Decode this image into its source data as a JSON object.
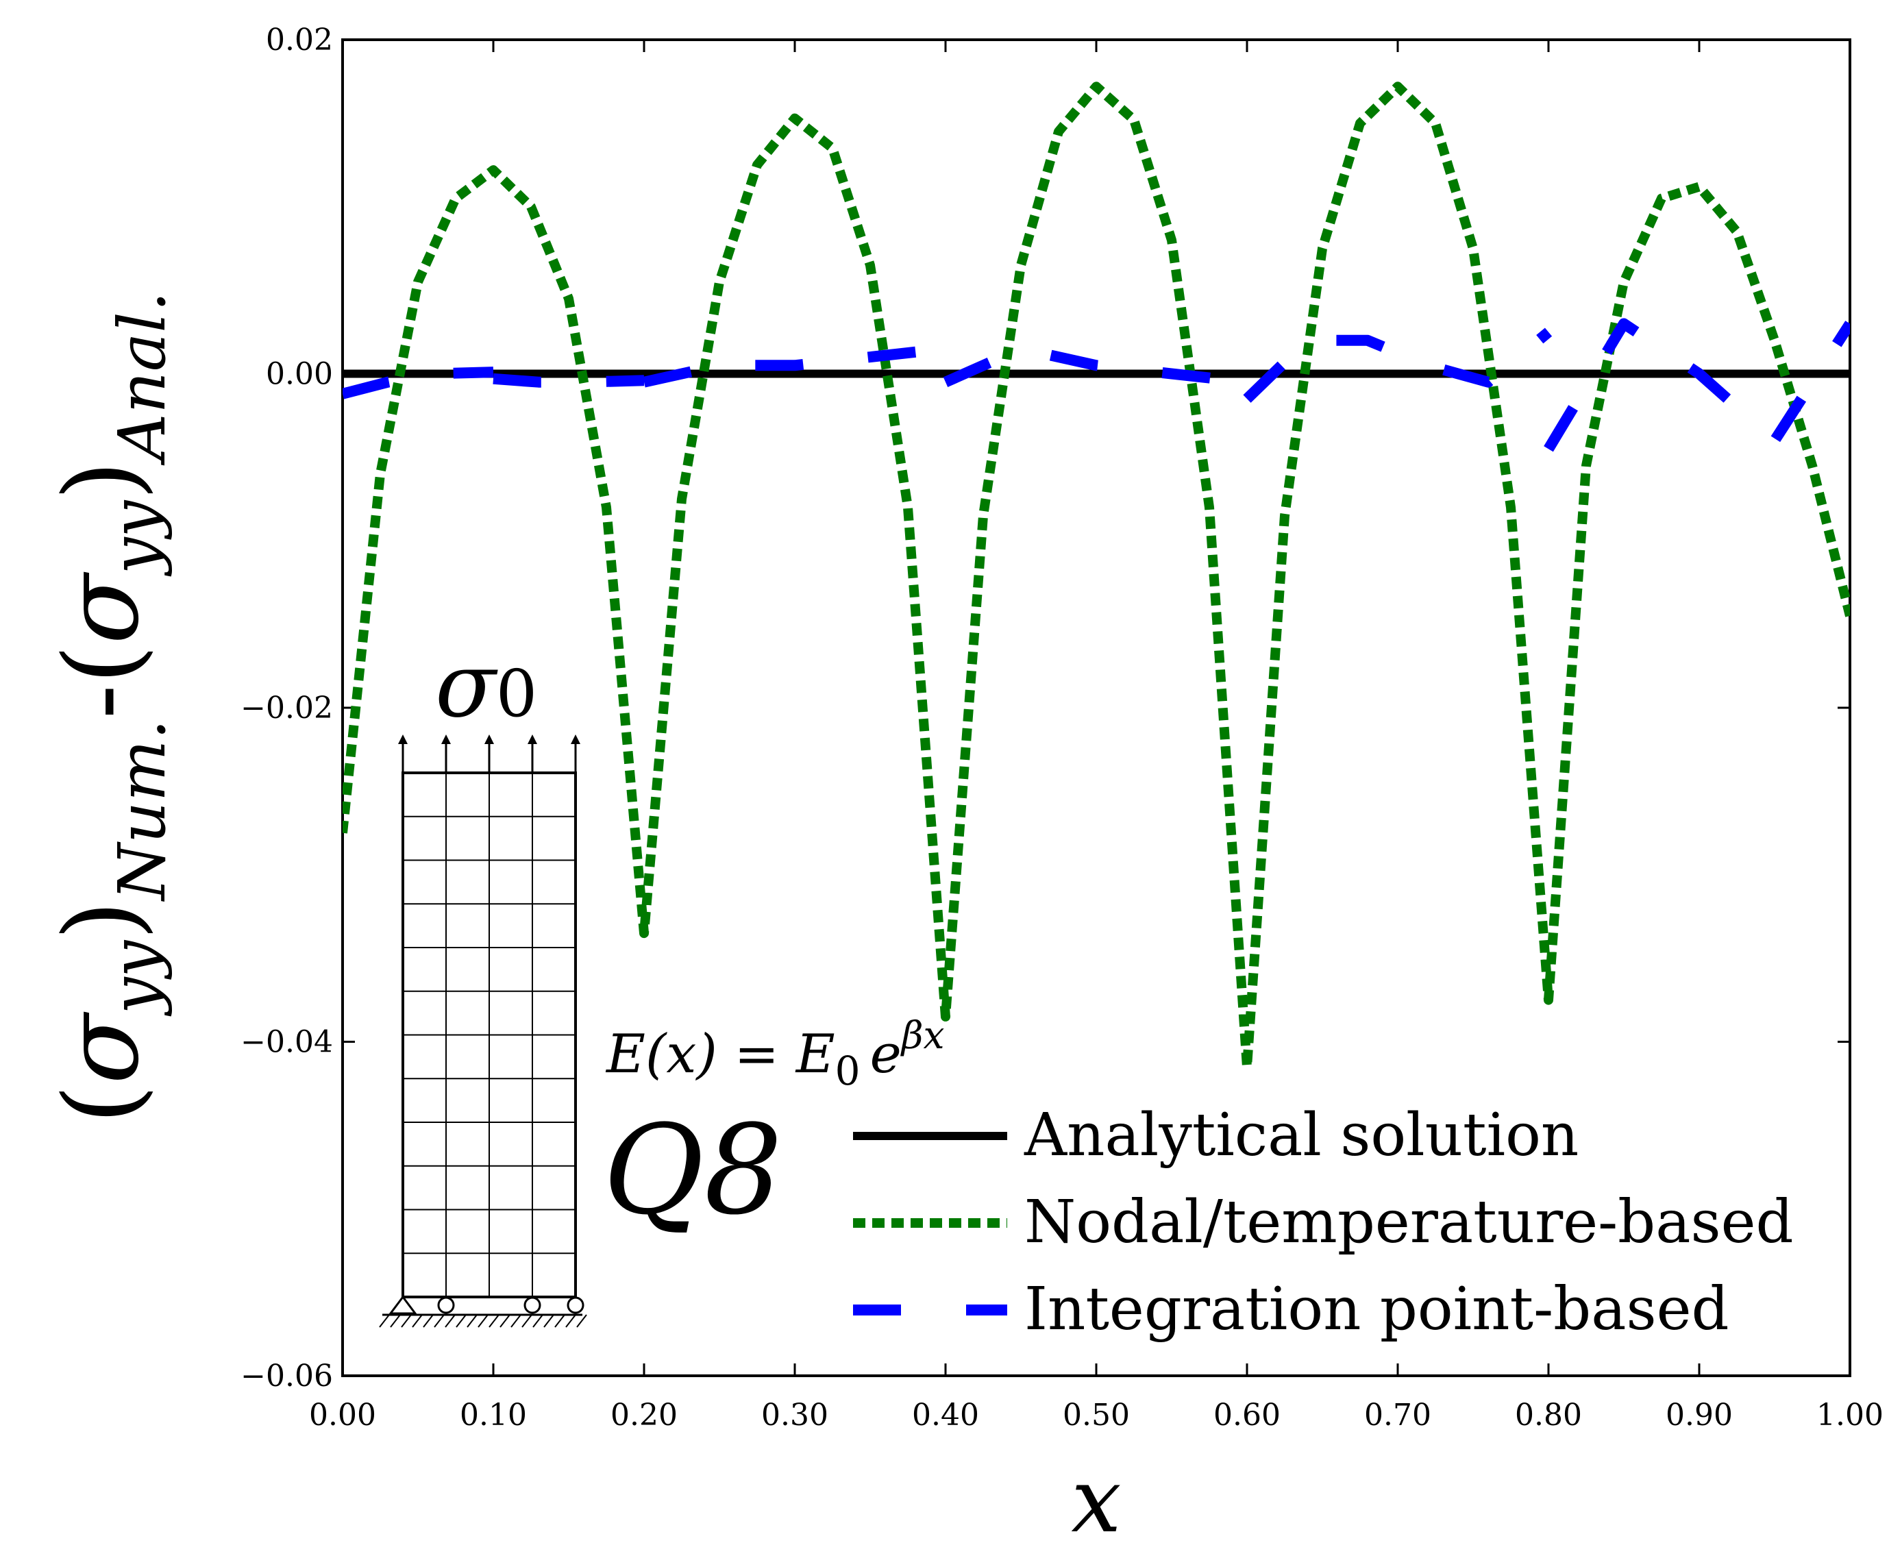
{
  "chart_data": {
    "type": "line",
    "title": "",
    "xlabel": "x",
    "ylabel": {
      "left_paren": "(",
      "sigma": "σ",
      "sub_yy": "yy",
      "right_paren": ")",
      "num_sub": "Num.",
      "dash": "-",
      "anal_sub": "Anal."
    },
    "xlim": [
      0.0,
      1.0
    ],
    "ylim": [
      -0.06,
      0.02
    ],
    "x_ticks": [
      0.0,
      0.1,
      0.2,
      0.3,
      0.4,
      0.5,
      0.6,
      0.7,
      0.8,
      0.9,
      1.0
    ],
    "x_tick_labels": [
      "0.00",
      "0.10",
      "0.20",
      "0.30",
      "0.40",
      "0.50",
      "0.60",
      "0.70",
      "0.80",
      "0.90",
      "1.00"
    ],
    "y_ticks": [
      0.02,
      0.0,
      -0.02,
      -0.04,
      -0.06
    ],
    "y_tick_labels": [
      "0.02",
      "0.00",
      "−0.02",
      "−0.04",
      "−0.06"
    ],
    "legend_position": "lower-right",
    "series": [
      {
        "name": "Analytical solution",
        "style": "solid",
        "color": "#000000",
        "x": [
          0.0,
          1.0
        ],
        "y": [
          0.0,
          0.0
        ]
      },
      {
        "name": "Nodal/temperature-based",
        "style": "dotted",
        "color": "#007a00",
        "x": [
          0.0,
          0.025,
          0.05,
          0.075,
          0.1,
          0.125,
          0.15,
          0.175,
          0.2,
          0.2,
          0.225,
          0.25,
          0.275,
          0.3,
          0.325,
          0.35,
          0.375,
          0.4,
          0.4,
          0.425,
          0.45,
          0.475,
          0.5,
          0.525,
          0.55,
          0.575,
          0.6,
          0.6,
          0.625,
          0.65,
          0.675,
          0.7,
          0.725,
          0.75,
          0.775,
          0.8,
          0.8,
          0.825,
          0.85,
          0.875,
          0.9,
          0.925,
          0.95,
          0.975,
          1.0
        ],
        "y": [
          -0.0275,
          -0.006,
          0.0055,
          0.0105,
          0.0122,
          0.01,
          0.0045,
          -0.008,
          -0.0335,
          -0.0335,
          -0.0075,
          0.0055,
          0.0125,
          0.0153,
          0.0135,
          0.0065,
          -0.008,
          -0.0385,
          -0.0385,
          -0.0085,
          0.0065,
          0.0145,
          0.0172,
          0.0152,
          0.008,
          -0.008,
          -0.0415,
          -0.0415,
          -0.0085,
          0.0075,
          0.015,
          0.0172,
          0.015,
          0.0075,
          -0.008,
          -0.0375,
          -0.0375,
          -0.0055,
          0.0055,
          0.0105,
          0.0112,
          0.0085,
          0.002,
          -0.0055,
          -0.0145
        ]
      },
      {
        "name": "Integration point-based",
        "style": "dashed",
        "color": "#0000ff",
        "segments": [
          {
            "x": [
              0.0,
              0.03,
              0.06,
              0.1
            ],
            "y": [
              -0.0012,
              -0.0005,
              0.0,
              0.0001
            ]
          },
          {
            "x": [
              0.1,
              0.13,
              0.16,
              0.2
            ],
            "y": [
              -0.0003,
              -0.0005,
              -0.0005,
              -0.0004
            ]
          },
          {
            "x": [
              0.2,
              0.25,
              0.3,
              0.4
            ],
            "y": [
              -0.0005,
              0.0005,
              0.0005,
              0.0015
            ]
          },
          {
            "x": [
              0.4,
              0.45,
              0.5,
              0.6
            ],
            "y": [
              -0.0005,
              0.0015,
              0.0005,
              -0.0005
            ]
          },
          {
            "x": [
              0.6,
              0.64,
              0.68,
              0.72,
              0.76,
              0.8
            ],
            "y": [
              -0.0015,
              0.002,
              0.002,
              0.0005,
              -0.0005,
              0.0025
            ]
          },
          {
            "x": [
              0.8,
              0.85,
              0.9,
              0.95,
              1.0
            ],
            "y": [
              -0.0045,
              0.003,
              0.0,
              -0.004,
              0.003
            ]
          }
        ]
      }
    ],
    "annotations": {
      "formula": "E(x) = E₀ e^(βx)",
      "formula_lhs": "E(x) = E",
      "formula_sub": "0",
      "formula_base": "e",
      "formula_exp": "βx",
      "element_label": "Q8",
      "load_label": "σ",
      "load_sub": "0",
      "mesh_columns": 4,
      "mesh_rows": 12
    }
  }
}
